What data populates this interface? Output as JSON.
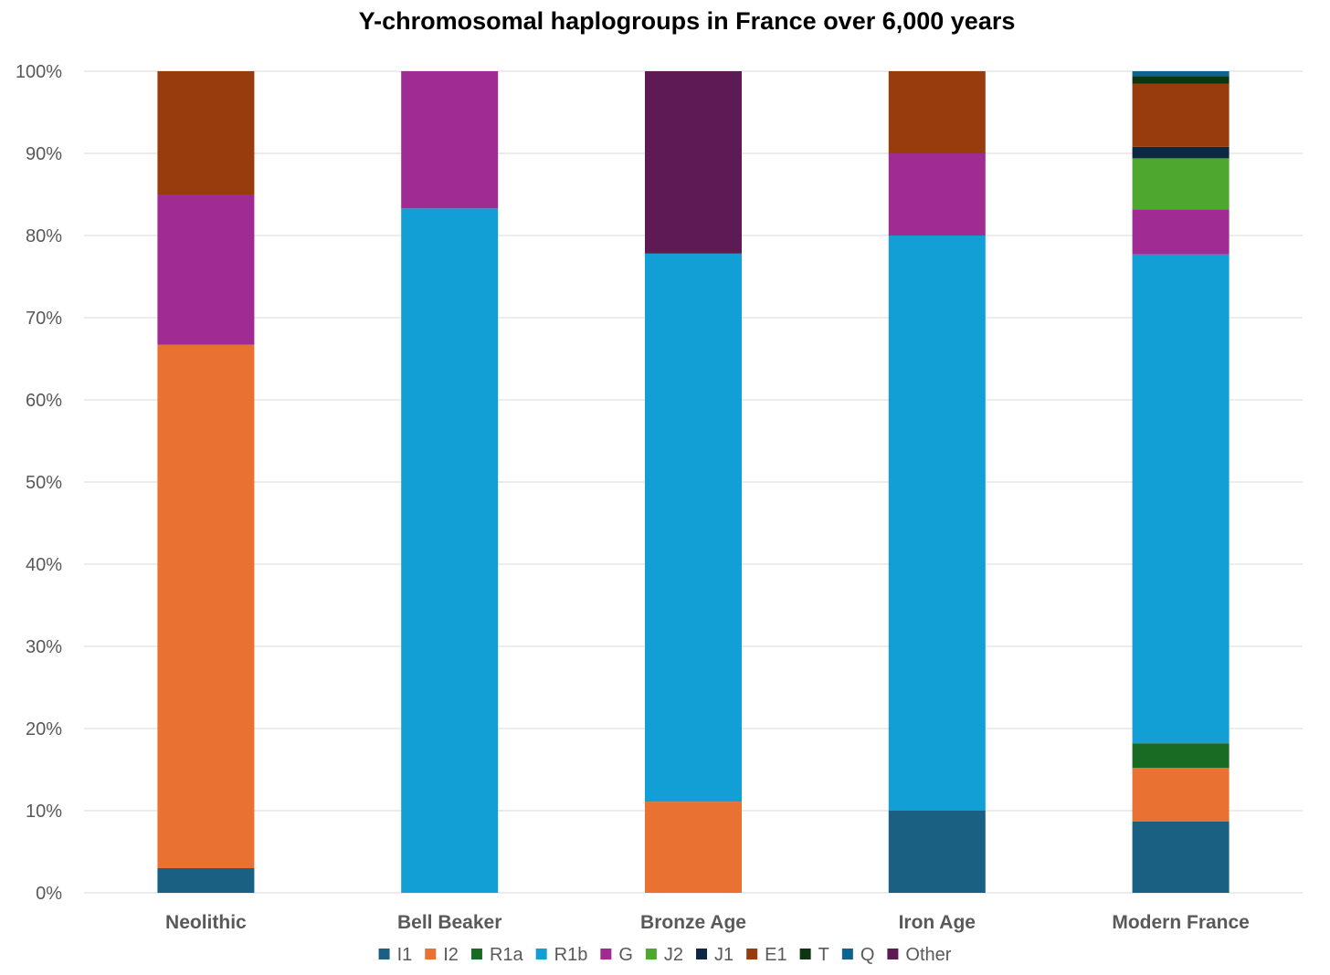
{
  "chart_data": {
    "type": "bar",
    "stacked": true,
    "title": "Y-chromosomal haplogroups in France over 6,000 years",
    "xlabel": "",
    "ylabel": "",
    "ylim": [
      0,
      100
    ],
    "yticks": [
      "0%",
      "10%",
      "20%",
      "30%",
      "40%",
      "50%",
      "60%",
      "70%",
      "80%",
      "90%",
      "100%"
    ],
    "categories": [
      "Neolithic",
      "Bell Beaker",
      "Bronze Age",
      "Iron Age",
      "Modern France"
    ],
    "legend_position": "bottom",
    "grid": true,
    "series": [
      {
        "name": "I1",
        "color": "#1a6082",
        "values": [
          3,
          0,
          0,
          10,
          8.7
        ]
      },
      {
        "name": "I2",
        "color": "#e97132",
        "values": [
          63.7,
          0,
          11.1,
          0,
          6.5
        ]
      },
      {
        "name": "R1a",
        "color": "#196b24",
        "values": [
          0,
          0,
          0,
          0,
          3
        ]
      },
      {
        "name": "R1b",
        "color": "#119fd5",
        "values": [
          0,
          83.3,
          66.7,
          70,
          59.5
        ]
      },
      {
        "name": "G",
        "color": "#a02b93",
        "values": [
          18.3,
          16.7,
          0,
          10,
          5.5
        ]
      },
      {
        "name": "J2",
        "color": "#4ea72e",
        "values": [
          0,
          0,
          0,
          0,
          6.2
        ]
      },
      {
        "name": "J1",
        "color": "#0e2841",
        "values": [
          0,
          0,
          0,
          0,
          1.4
        ]
      },
      {
        "name": "E1",
        "color": "#983c0e",
        "values": [
          15,
          0,
          0,
          10,
          7.7
        ]
      },
      {
        "name": "T",
        "color": "#0d3512",
        "values": [
          0,
          0,
          0,
          0,
          0.9
        ]
      },
      {
        "name": "Q",
        "color": "#0f6391",
        "values": [
          0,
          0,
          0,
          0,
          0.6
        ]
      },
      {
        "name": "Other",
        "color": "#5e1a55",
        "values": [
          0,
          0,
          22.2,
          0,
          0
        ]
      }
    ]
  }
}
